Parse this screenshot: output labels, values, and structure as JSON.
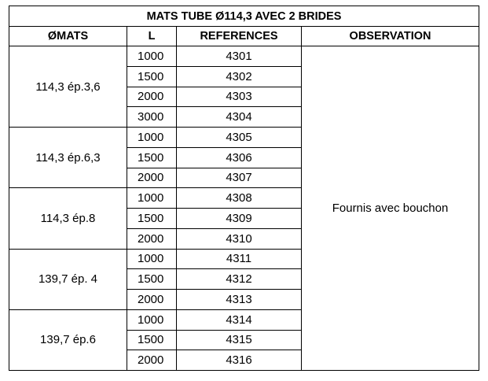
{
  "table": {
    "title": "MATS TUBE Ø114,3 AVEC 2 BRIDES",
    "headers": [
      "ØMATS",
      "L",
      "REFERENCES",
      "OBSERVATION"
    ],
    "observation": "Fournis avec bouchon",
    "groups": [
      {
        "label": "114,3 ép.3,6",
        "rows": [
          [
            "1000",
            "4301"
          ],
          [
            "1500",
            "4302"
          ],
          [
            "2000",
            "4303"
          ],
          [
            "3000",
            "4304"
          ]
        ]
      },
      {
        "label": "114,3 ép.6,3",
        "rows": [
          [
            "1000",
            "4305"
          ],
          [
            "1500",
            "4306"
          ],
          [
            "2000",
            "4307"
          ]
        ]
      },
      {
        "label": "114,3 ép.8",
        "rows": [
          [
            "1000",
            "4308"
          ],
          [
            "1500",
            "4309"
          ],
          [
            "2000",
            "4310"
          ]
        ]
      },
      {
        "label": "139,7 ép. 4",
        "rows": [
          [
            "1000",
            "4311"
          ],
          [
            "1500",
            "4312"
          ],
          [
            "2000",
            "4313"
          ]
        ]
      },
      {
        "label": "139,7 ép.6",
        "rows": [
          [
            "1000",
            "4314"
          ],
          [
            "1500",
            "4315"
          ],
          [
            "2000",
            "4316"
          ]
        ]
      }
    ]
  }
}
